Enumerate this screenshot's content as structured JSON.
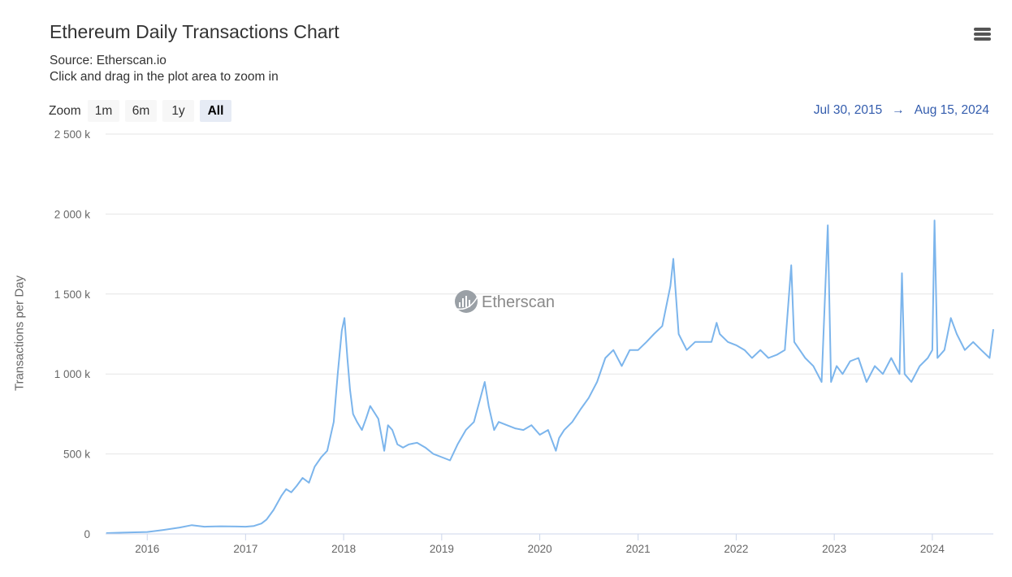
{
  "header": {
    "title": "Ethereum Daily Transactions Chart",
    "source": "Source: Etherscan.io",
    "hint": "Click and drag in the plot area to zoom in",
    "menu_icon": "hamburger-menu-icon"
  },
  "zoom": {
    "label": "Zoom",
    "buttons": [
      "1m",
      "6m",
      "1y",
      "All"
    ],
    "active": "All"
  },
  "range": {
    "from": "Jul 30, 2015",
    "arrow": "→",
    "to": "Aug 15, 2024"
  },
  "watermark": {
    "text": "Etherscan"
  },
  "colors": {
    "series": "#7cb5ec",
    "grid": "#e6e6e6",
    "axis": "#ccd6eb",
    "range_text": "#335cad"
  },
  "chart_data": {
    "type": "line",
    "title": "Ethereum Daily Transactions Chart",
    "ylabel": "Transactions per Day",
    "xlabel": "",
    "ylim": [
      0,
      2500000
    ],
    "xlim": [
      "2015-07-30",
      "2024-08-15"
    ],
    "y_ticks": [
      "0",
      "500 k",
      "1 000 k",
      "1 500 k",
      "2 000 k",
      "2 500 k"
    ],
    "x_ticks": [
      "2016",
      "2017",
      "2018",
      "2019",
      "2020",
      "2021",
      "2022",
      "2023",
      "2024"
    ],
    "grid": true,
    "series": [
      {
        "x": [
          "2015-08-01",
          "2015-10-01",
          "2016-01-01",
          "2016-03-01",
          "2016-05-01",
          "2016-06-15",
          "2016-08-01",
          "2016-10-01",
          "2016-12-01",
          "2017-01-01",
          "2017-02-01",
          "2017-03-01",
          "2017-03-20",
          "2017-04-15",
          "2017-05-15",
          "2017-06-01",
          "2017-06-20",
          "2017-07-10",
          "2017-08-01",
          "2017-08-25",
          "2017-09-15",
          "2017-10-10",
          "2017-11-01",
          "2017-11-25",
          "2017-12-10",
          "2017-12-25",
          "2018-01-04",
          "2018-01-15",
          "2018-01-25",
          "2018-02-05",
          "2018-02-20",
          "2018-03-10",
          "2018-03-25",
          "2018-04-10",
          "2018-04-25",
          "2018-05-10",
          "2018-06-01",
          "2018-06-15",
          "2018-07-01",
          "2018-07-20",
          "2018-08-10",
          "2018-09-01",
          "2018-10-01",
          "2018-11-01",
          "2018-12-01",
          "2019-01-01",
          "2019-02-01",
          "2019-03-01",
          "2019-04-01",
          "2019-05-01",
          "2019-05-25",
          "2019-06-10",
          "2019-06-25",
          "2019-07-15",
          "2019-08-01",
          "2019-09-01",
          "2019-10-01",
          "2019-11-01",
          "2019-12-01",
          "2020-01-01",
          "2020-02-01",
          "2020-03-01",
          "2020-03-13",
          "2020-04-01",
          "2020-05-01",
          "2020-06-01",
          "2020-07-01",
          "2020-08-01",
          "2020-09-01",
          "2020-10-01",
          "2020-11-01",
          "2020-12-01",
          "2021-01-01",
          "2021-02-01",
          "2021-03-01",
          "2021-04-01",
          "2021-05-01",
          "2021-05-12",
          "2021-06-01",
          "2021-07-01",
          "2021-08-01",
          "2021-09-01",
          "2021-10-01",
          "2021-10-20",
          "2021-11-01",
          "2021-12-01",
          "2022-01-01",
          "2022-02-01",
          "2022-03-01",
          "2022-04-01",
          "2022-05-01",
          "2022-06-01",
          "2022-07-01",
          "2022-07-25",
          "2022-08-05",
          "2022-09-15",
          "2022-10-15",
          "2022-11-15",
          "2022-12-08",
          "2022-12-20",
          "2023-01-10",
          "2023-02-01",
          "2023-03-01",
          "2023-04-01",
          "2023-05-01",
          "2023-06-01",
          "2023-07-01",
          "2023-08-01",
          "2023-09-01",
          "2023-09-10",
          "2023-09-20",
          "2023-10-15",
          "2023-11-15",
          "2023-12-15",
          "2024-01-01",
          "2024-01-09",
          "2024-01-20",
          "2024-02-15",
          "2024-03-10",
          "2024-04-01",
          "2024-05-01",
          "2024-06-01",
          "2024-07-01",
          "2024-08-01",
          "2024-08-15"
        ],
        "y": [
          5000,
          8000,
          12000,
          25000,
          40000,
          55000,
          45000,
          48000,
          46000,
          45000,
          50000,
          65000,
          90000,
          150000,
          240000,
          280000,
          260000,
          300000,
          350000,
          320000,
          420000,
          480000,
          520000,
          700000,
          1000000,
          1270000,
          1350000,
          1100000,
          900000,
          750000,
          700000,
          650000,
          720000,
          800000,
          760000,
          720000,
          520000,
          680000,
          650000,
          560000,
          540000,
          560000,
          570000,
          540000,
          500000,
          480000,
          460000,
          560000,
          650000,
          700000,
          850000,
          950000,
          800000,
          650000,
          700000,
          680000,
          660000,
          650000,
          680000,
          620000,
          650000,
          520000,
          600000,
          650000,
          700000,
          780000,
          850000,
          950000,
          1100000,
          1150000,
          1050000,
          1150000,
          1150000,
          1200000,
          1250000,
          1300000,
          1550000,
          1720000,
          1250000,
          1150000,
          1200000,
          1200000,
          1200000,
          1320000,
          1250000,
          1200000,
          1180000,
          1150000,
          1100000,
          1150000,
          1100000,
          1120000,
          1150000,
          1680000,
          1200000,
          1100000,
          1050000,
          950000,
          1930000,
          950000,
          1050000,
          1000000,
          1080000,
          1100000,
          950000,
          1050000,
          1000000,
          1100000,
          1000000,
          1630000,
          1000000,
          950000,
          1050000,
          1100000,
          1150000,
          1960000,
          1100000,
          1150000,
          1350000,
          1250000,
          1150000,
          1200000,
          1150000,
          1100000,
          1280000
        ]
      }
    ]
  }
}
